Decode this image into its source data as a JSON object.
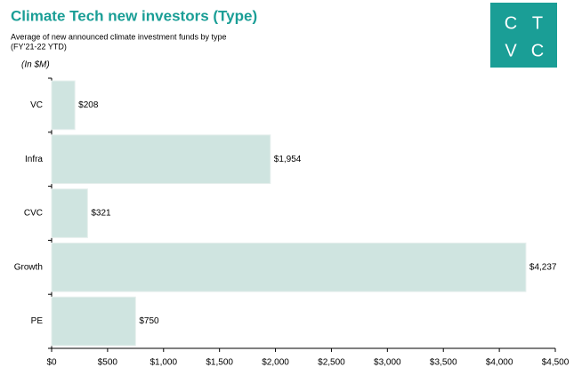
{
  "chart_data": {
    "type": "barh",
    "title": "Climate Tech new investors (Type)",
    "subtitle": [
      "Average of new announced climate investment funds by type",
      "(FY’21-22 YTD)"
    ],
    "unit_note": "(In $M)",
    "categories": [
      "VC",
      "Infra",
      "CVC",
      "Growth",
      "PE"
    ],
    "values": [
      208,
      1954,
      321,
      4237,
      750
    ],
    "value_labels": [
      "$208",
      "$1,954",
      "$321",
      "$4,237",
      "$750"
    ],
    "color": "#cfe4e0",
    "xlim": [
      0,
      4500
    ],
    "xticks": [
      {
        "value": 0,
        "label": "$0"
      },
      {
        "value": 500,
        "label": "$500"
      },
      {
        "value": 1000,
        "label": "$1,000"
      },
      {
        "value": 1500,
        "label": "$1,500"
      },
      {
        "value": 2000,
        "label": "$2,000"
      },
      {
        "value": 2500,
        "label": "$2,500"
      },
      {
        "value": 3000,
        "label": "$3,000"
      },
      {
        "value": 3500,
        "label": "$3,500"
      },
      {
        "value": 4000,
        "label": "$4,000"
      },
      {
        "value": 4500,
        "label": "$4,500"
      }
    ],
    "grid": false
  },
  "logo": {
    "letters": [
      "C",
      "T",
      "V",
      "C"
    ]
  }
}
